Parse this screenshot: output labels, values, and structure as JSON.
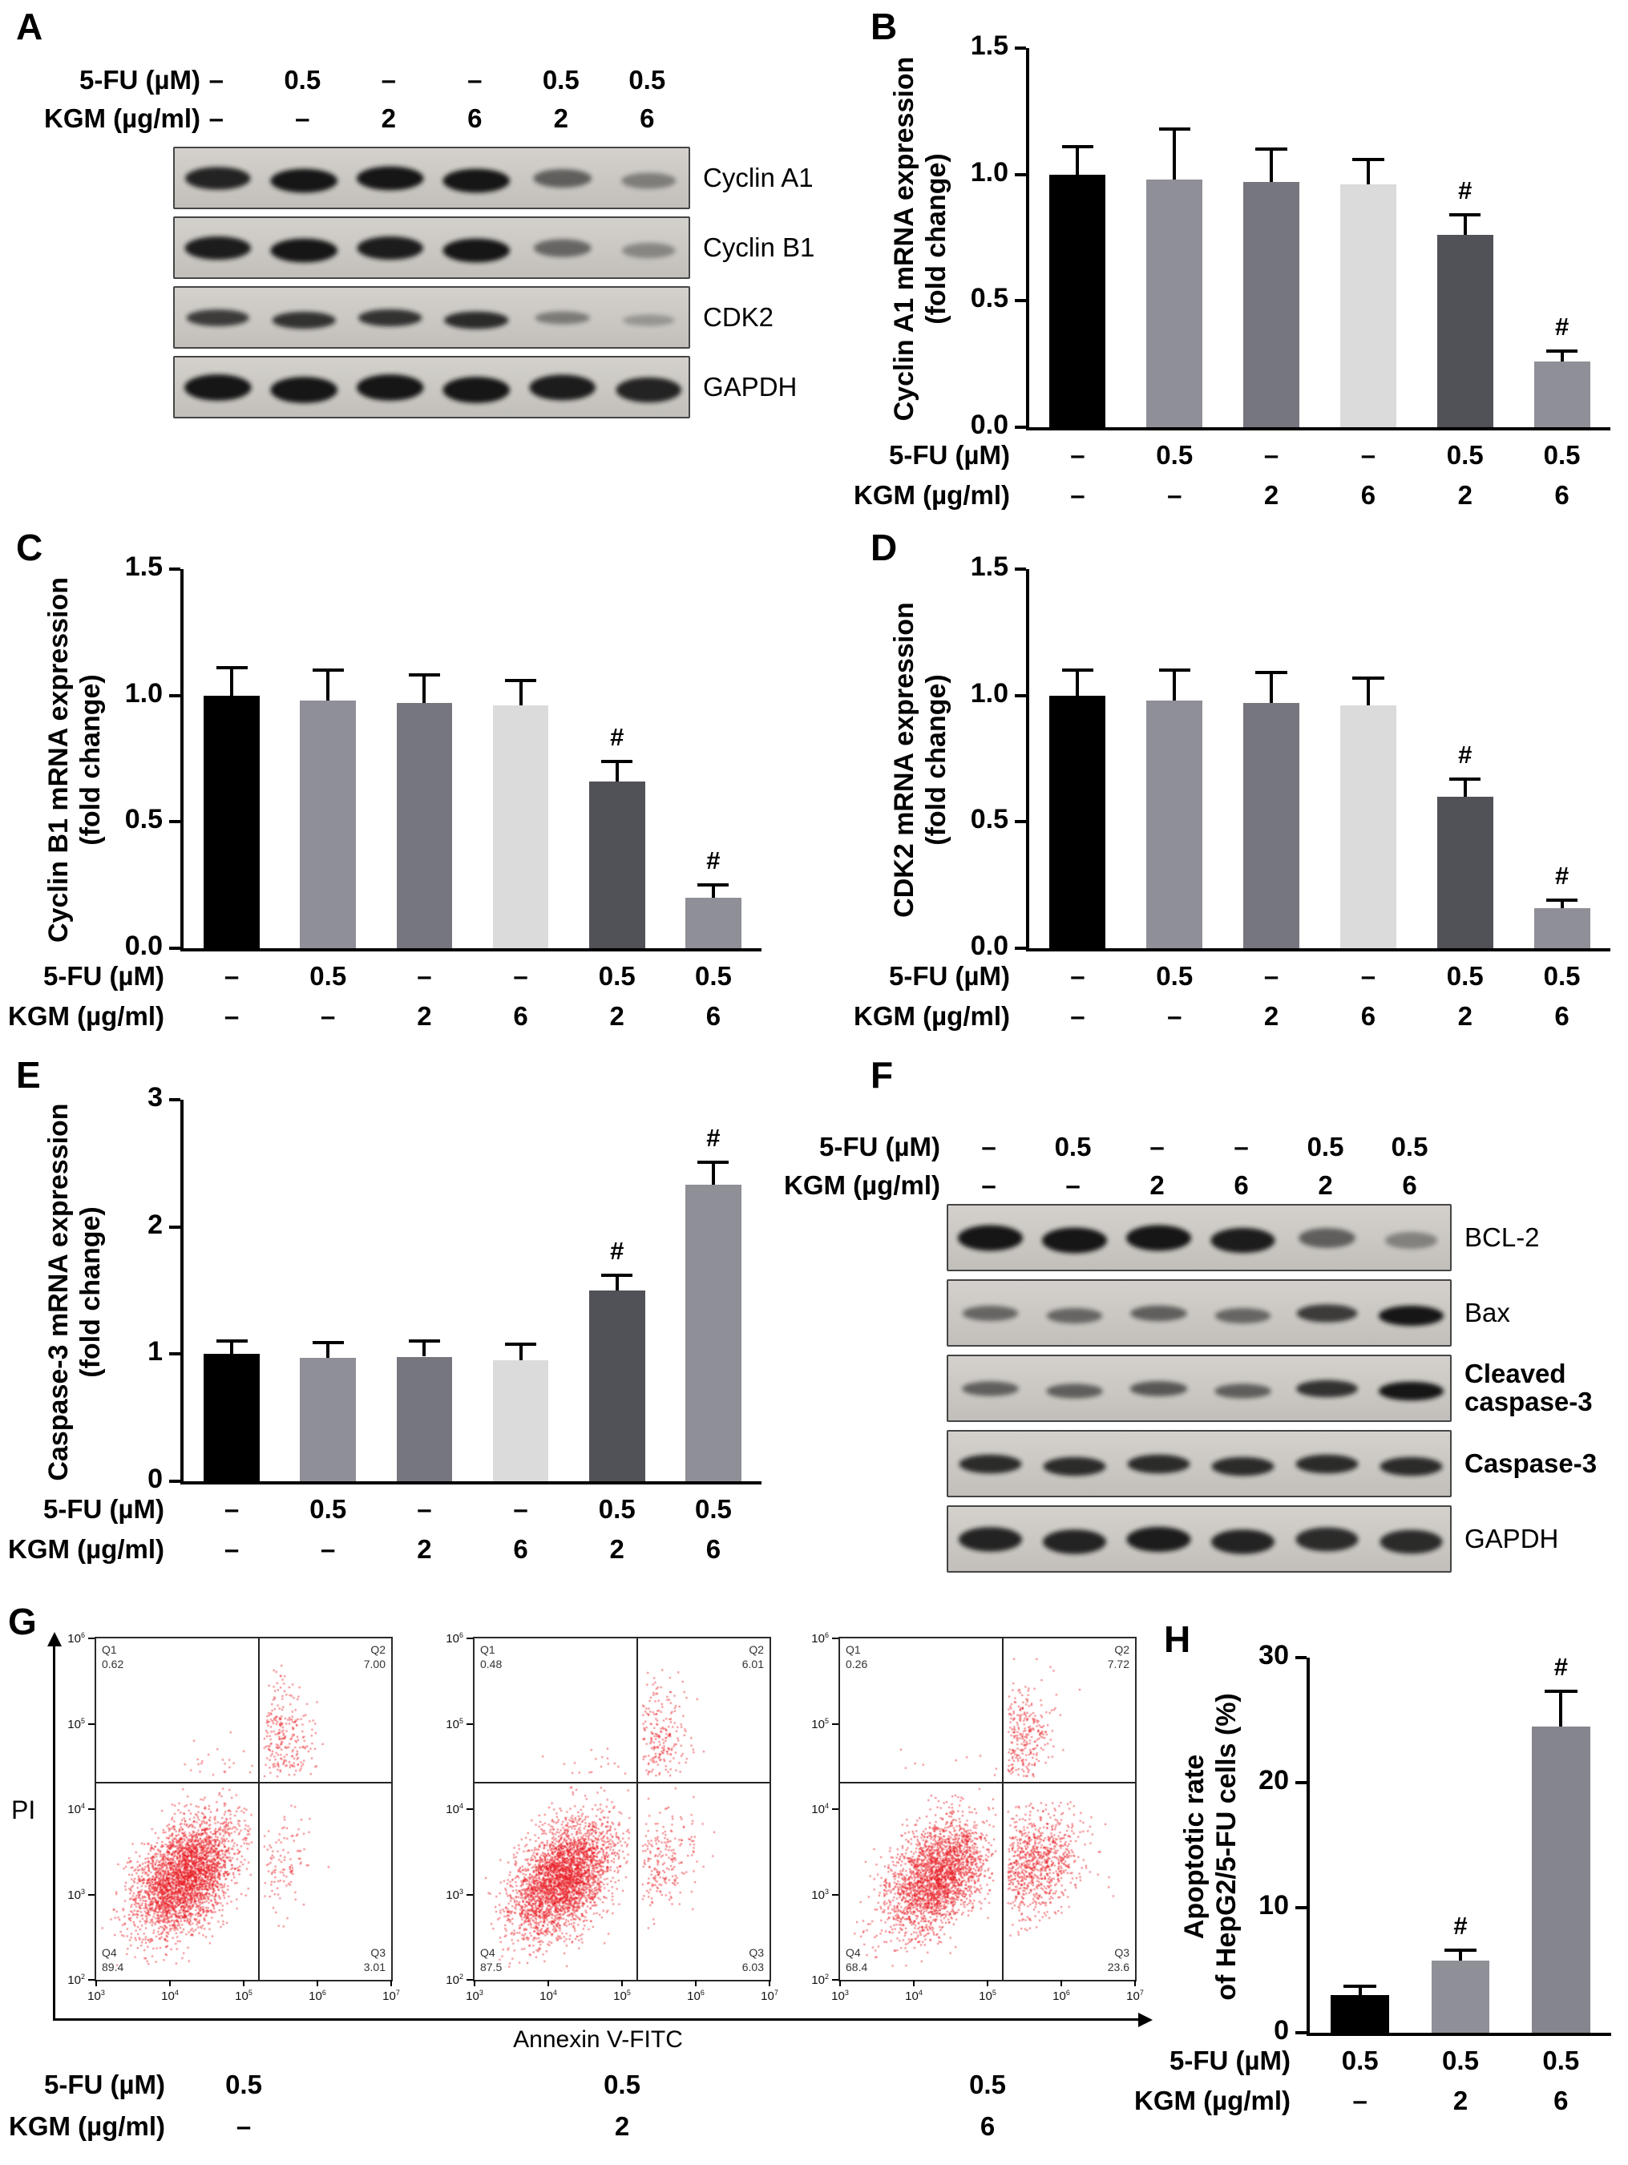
{
  "panels": {
    "A": {
      "letter": "A",
      "rows": [
        {
          "label": "5-FU (µM)",
          "values": [
            "–",
            "0.5",
            "–",
            "–",
            "0.5",
            "0.5"
          ]
        },
        {
          "label": "KGM (µg/ml)",
          "values": [
            "–",
            "–",
            "2",
            "6",
            "2",
            "6"
          ]
        }
      ],
      "bands": [
        {
          "label": "Cyclin A1",
          "bold": false,
          "ryf": 0.19,
          "intensities": [
            0.9,
            1,
            1,
            1,
            0.5,
            0.28
          ]
        },
        {
          "label": "Cyclin B1",
          "bold": false,
          "ryf": 0.19,
          "intensities": [
            0.95,
            1,
            0.95,
            1,
            0.45,
            0.22
          ]
        },
        {
          "label": "CDK2",
          "bold": false,
          "ryf": 0.15,
          "intensities": [
            0.75,
            0.8,
            0.8,
            0.85,
            0.3,
            0.12
          ]
        },
        {
          "label": "GAPDH",
          "bold": false,
          "ryf": 0.21,
          "intensities": [
            1,
            1,
            1,
            1,
            0.95,
            0.9
          ]
        }
      ]
    },
    "B": {
      "letter": "B"
    },
    "C": {
      "letter": "C"
    },
    "D": {
      "letter": "D"
    },
    "E": {
      "letter": "E"
    },
    "F": {
      "letter": "F",
      "rows": [
        {
          "label": "5-FU (µM)",
          "values": [
            "–",
            "0.5",
            "–",
            "–",
            "0.5",
            "0.5"
          ]
        },
        {
          "label": "KGM (µg/ml)",
          "values": [
            "–",
            "–",
            "2",
            "6",
            "2",
            "6"
          ]
        }
      ],
      "bands": [
        {
          "label": "BCL-2",
          "bold": false,
          "ryf": 0.19,
          "intensities": [
            1,
            1,
            1,
            0.95,
            0.5,
            0.25
          ]
        },
        {
          "label": "Bax",
          "bold": false,
          "ryf": 0.15,
          "intensities": [
            0.45,
            0.45,
            0.5,
            0.45,
            0.75,
            1
          ]
        },
        {
          "label": "Cleaved caspase-3",
          "bold": true,
          "ryf": 0.14,
          "intensities": [
            0.5,
            0.5,
            0.55,
            0.5,
            0.8,
            1
          ]
        },
        {
          "label": "Caspase-3",
          "bold": true,
          "ryf": 0.15,
          "intensities": [
            0.85,
            0.85,
            0.85,
            0.85,
            0.85,
            0.85
          ]
        },
        {
          "label": "GAPDH",
          "bold": false,
          "ryf": 0.19,
          "intensities": [
            0.9,
            0.9,
            0.95,
            0.9,
            0.85,
            0.85
          ]
        }
      ]
    },
    "G": {
      "letter": "G",
      "ylabel": "PI",
      "xlabel": "Annexin V-FITC",
      "rows": [
        {
          "label": "5-FU (µM)",
          "values": [
            "0.5",
            "0.5",
            "0.5"
          ]
        },
        {
          "label": "KGM (µg/ml)",
          "values": [
            "–",
            "2",
            "6"
          ]
        }
      ]
    },
    "H": {
      "letter": "H"
    }
  },
  "chart_data": [
    {
      "id": "B",
      "type": "bar",
      "ylabel": [
        "Cyclin A1 mRNA expression",
        "(fold change)"
      ],
      "ylim": [
        0,
        1.5
      ],
      "yticks": [
        "0.0",
        "0.5",
        "1.0",
        "1.5"
      ],
      "values": [
        1.0,
        0.98,
        0.97,
        0.96,
        0.76,
        0.26
      ],
      "errors": [
        0.11,
        0.2,
        0.13,
        0.1,
        0.08,
        0.04
      ],
      "sig": [
        "",
        "",
        "",
        "",
        "#",
        "#"
      ],
      "colors": [
        "#000000",
        "#8f8f97",
        "#76767e",
        "#dbdbdb",
        "#515158",
        "#8f8f97"
      ],
      "group_rows": [
        {
          "label": "5-FU (µM)",
          "values": [
            "–",
            "0.5",
            "–",
            "–",
            "0.5",
            "0.5"
          ]
        },
        {
          "label": "KGM (µg/ml)",
          "values": [
            "–",
            "–",
            "2",
            "6",
            "2",
            "6"
          ]
        }
      ]
    },
    {
      "id": "C",
      "type": "bar",
      "ylabel": [
        "Cyclin B1 mRNA expression",
        "(fold change)"
      ],
      "ylim": [
        0,
        1.5
      ],
      "yticks": [
        "0.0",
        "0.5",
        "1.0",
        "1.5"
      ],
      "values": [
        1.0,
        0.98,
        0.97,
        0.96,
        0.66,
        0.2
      ],
      "errors": [
        0.11,
        0.12,
        0.11,
        0.1,
        0.08,
        0.05
      ],
      "sig": [
        "",
        "",
        "",
        "",
        "#",
        "#"
      ],
      "colors": [
        "#000000",
        "#8f8f97",
        "#76767e",
        "#dbdbdb",
        "#515158",
        "#8f8f97"
      ],
      "group_rows": [
        {
          "label": "5-FU (µM)",
          "values": [
            "–",
            "0.5",
            "–",
            "–",
            "0.5",
            "0.5"
          ]
        },
        {
          "label": "KGM (µg/ml)",
          "values": [
            "–",
            "–",
            "2",
            "6",
            "2",
            "6"
          ]
        }
      ]
    },
    {
      "id": "D",
      "type": "bar",
      "ylabel": [
        "CDK2 mRNA expression",
        "(fold change)"
      ],
      "ylim": [
        0,
        1.5
      ],
      "yticks": [
        "0.0",
        "0.5",
        "1.0",
        "1.5"
      ],
      "values": [
        1.0,
        0.98,
        0.97,
        0.96,
        0.6,
        0.16
      ],
      "errors": [
        0.1,
        0.12,
        0.12,
        0.11,
        0.07,
        0.03
      ],
      "sig": [
        "",
        "",
        "",
        "",
        "#",
        "#"
      ],
      "colors": [
        "#000000",
        "#8f8f97",
        "#76767e",
        "#dbdbdb",
        "#515158",
        "#8f8f97"
      ],
      "group_rows": [
        {
          "label": "5-FU (µM)",
          "values": [
            "–",
            "0.5",
            "–",
            "–",
            "0.5",
            "0.5"
          ]
        },
        {
          "label": "KGM (µg/ml)",
          "values": [
            "–",
            "–",
            "2",
            "6",
            "2",
            "6"
          ]
        }
      ]
    },
    {
      "id": "E",
      "type": "bar",
      "ylabel": [
        "Caspase-3 mRNA expression",
        "(fold change)"
      ],
      "ylim": [
        0,
        3
      ],
      "yticks": [
        "0",
        "1",
        "2",
        "3"
      ],
      "values": [
        1.0,
        0.97,
        0.98,
        0.95,
        1.5,
        2.33
      ],
      "errors": [
        0.1,
        0.12,
        0.12,
        0.13,
        0.12,
        0.18
      ],
      "sig": [
        "",
        "",
        "",
        "",
        "#",
        "#"
      ],
      "colors": [
        "#000000",
        "#8f8f97",
        "#76767e",
        "#dbdbdb",
        "#515158",
        "#8f8f97"
      ],
      "group_rows": [
        {
          "label": "5-FU (µM)",
          "values": [
            "–",
            "0.5",
            "–",
            "–",
            "0.5",
            "0.5"
          ]
        },
        {
          "label": "KGM (µg/ml)",
          "values": [
            "–",
            "–",
            "2",
            "6",
            "2",
            "6"
          ]
        }
      ]
    },
    {
      "id": "H",
      "type": "bar",
      "ylabel": [
        "Apoptotic rate",
        "of HepG2/5-FU cells (%)"
      ],
      "ylim": [
        0,
        30
      ],
      "yticks": [
        "0",
        "10",
        "20",
        "30"
      ],
      "values": [
        3.0,
        5.8,
        24.5
      ],
      "errors": [
        0.7,
        0.8,
        2.8
      ],
      "sig": [
        "",
        "#",
        "#"
      ],
      "colors": [
        "#000000",
        "#8f8f97",
        "#85858d"
      ],
      "group_rows": [
        {
          "label": "5-FU (µM)",
          "values": [
            "0.5",
            "0.5",
            "0.5"
          ]
        },
        {
          "label": "KGM (µg/ml)",
          "values": [
            "–",
            "2",
            "6"
          ]
        }
      ]
    },
    {
      "id": "G1",
      "type": "scatter",
      "xlabel": "Annexin V-FITC",
      "ylabel": "PI",
      "x_ticks_exp": [
        3,
        4,
        5,
        6,
        7
      ],
      "y_ticks_exp": [
        6,
        5,
        4,
        3,
        2
      ],
      "quadrants": [
        {
          "name": "Q1",
          "value": "0.62"
        },
        {
          "name": "Q2",
          "value": "7.00"
        },
        {
          "name": "Q3",
          "value": "3.01"
        },
        {
          "name": "Q4",
          "value": "89.4"
        }
      ]
    },
    {
      "id": "G2",
      "type": "scatter",
      "xlabel": "Annexin V-FITC",
      "ylabel": "PI",
      "x_ticks_exp": [
        3,
        4,
        5,
        6,
        7
      ],
      "y_ticks_exp": [
        6,
        5,
        4,
        3,
        2
      ],
      "quadrants": [
        {
          "name": "Q1",
          "value": "0.48"
        },
        {
          "name": "Q2",
          "value": "6.01"
        },
        {
          "name": "Q3",
          "value": "6.03"
        },
        {
          "name": "Q4",
          "value": "87.5"
        }
      ]
    },
    {
      "id": "G3",
      "type": "scatter",
      "xlabel": "Annexin V-FITC",
      "ylabel": "PI",
      "x_ticks_exp": [
        3,
        4,
        5,
        6,
        7
      ],
      "y_ticks_exp": [
        6,
        5,
        4,
        3,
        2
      ],
      "quadrants": [
        {
          "name": "Q1",
          "value": "0.26"
        },
        {
          "name": "Q2",
          "value": "7.72"
        },
        {
          "name": "Q3",
          "value": "23.6"
        },
        {
          "name": "Q4",
          "value": "68.4"
        }
      ]
    }
  ]
}
